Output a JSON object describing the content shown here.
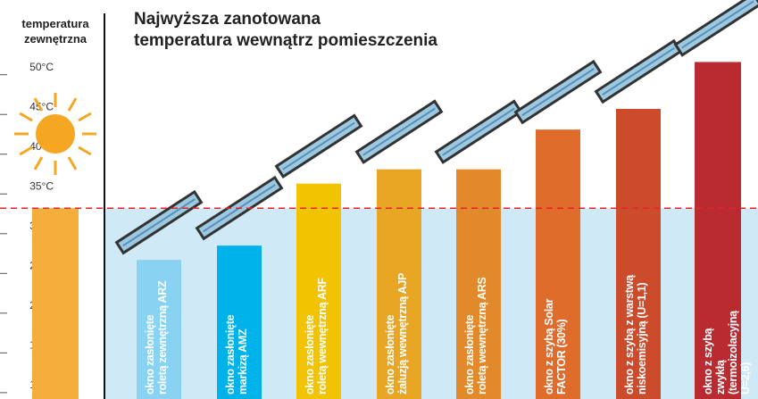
{
  "chart_data": {
    "type": "bar",
    "title": "Najwyższa zanotowana\ntemperatura wewnątrz pomieszczenia",
    "reference": {
      "label": "temperatura\nzewnętrzna",
      "value": 33.2,
      "color": "#f5ae3c"
    },
    "categories": [
      "okno zasłonięte\nroletą zewnętrzną ARZ",
      "okno zasłonięte\nmarkizą AMZ",
      "okno zasłonięte\nroletą wewnętrzną ARF",
      "okno zasłonięte\nżaluzją wewnętrzną AJP",
      "okno zasłonięte\nroletą wewnętrzną ARS",
      "okno z szybą Solar\nFACTOR (30%)",
      "okno z  szybą z warstwą\nniskoemisyjną (U=1,1)",
      "okno z szybą zwykłą\n(termoizolacyjną U=2,6)"
    ],
    "values": [
      26.7,
      28.5,
      36.3,
      38.1,
      38.1,
      43.1,
      45.7,
      51.6
    ],
    "colors": [
      "#8ad2f2",
      "#00b2ea",
      "#f1c300",
      "#e9a624",
      "#e28a2b",
      "#df6c2b",
      "#cc4b2b",
      "#b92a31"
    ],
    "ylim": [
      9.2,
      59.4
    ],
    "yticks": [
      {
        "value": 10,
        "label": "10°C"
      },
      {
        "value": 15,
        "label": "15°C"
      },
      {
        "value": 20,
        "label": "20°C"
      },
      {
        "value": 25,
        "label": "25°C"
      },
      {
        "value": 30,
        "label": "30°C"
      },
      {
        "value": 35,
        "label": "35°C"
      },
      {
        "value": 40,
        "label": "40°C"
      },
      {
        "value": 45,
        "label": "45°C"
      },
      {
        "value": 50,
        "label": "50°C"
      }
    ]
  }
}
